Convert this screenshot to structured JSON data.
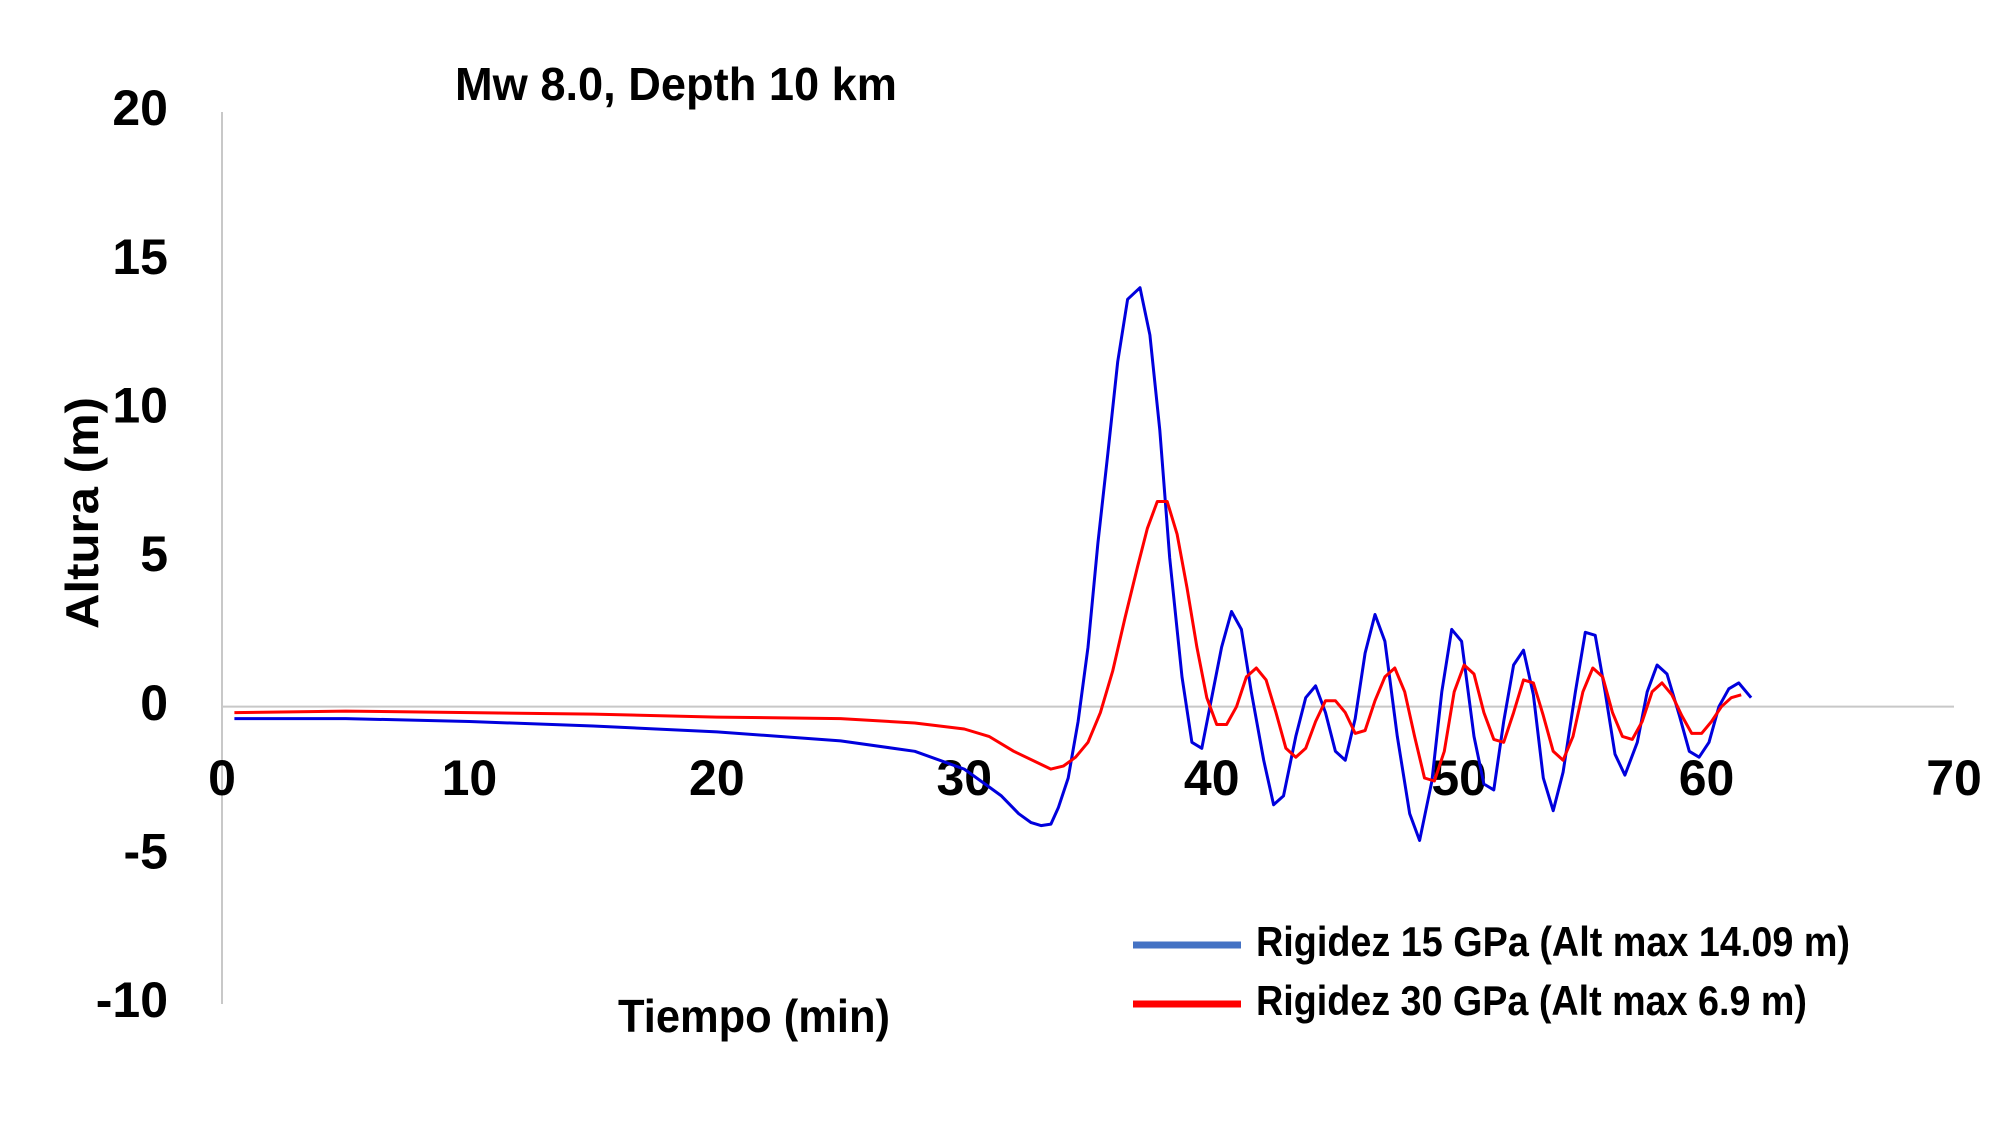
{
  "chart_data": {
    "type": "line",
    "title": "Mw 8.0, Depth 10 km",
    "x_label": "Tiempo (min)",
    "y_label": "Altura (m)",
    "xlim": [
      0,
      70
    ],
    "xticks": [
      0,
      10,
      20,
      30,
      40,
      50,
      60,
      70
    ],
    "ylim": [
      -10,
      20
    ],
    "yticks": [
      -10,
      -5,
      0,
      5,
      10,
      15,
      20
    ],
    "legend": "bottom-right",
    "series": [
      {
        "name": "Rigidez 15 GPa (Alt max 14.09 m)",
        "color": "#0000dd",
        "x": [
          0.5,
          5,
          10,
          15,
          20,
          25,
          28,
          30,
          31,
          31.5,
          32.2,
          32.7,
          33.1,
          33.5,
          33.8,
          34.2,
          34.6,
          35.0,
          35.4,
          35.8,
          36.2,
          36.6,
          37.1,
          37.5,
          37.9,
          38.3,
          38.8,
          39.2,
          39.6,
          40.0,
          40.4,
          40.8,
          41.2,
          41.6,
          42.1,
          42.5,
          42.9,
          43.4,
          43.8,
          44.2,
          44.6,
          45.0,
          45.4,
          45.8,
          46.2,
          46.6,
          47.0,
          47.5,
          48.0,
          48.4,
          48.9,
          49.3,
          49.7,
          50.1,
          50.6,
          51.0,
          51.4,
          51.8,
          52.2,
          52.6,
          53.0,
          53.4,
          53.8,
          54.2,
          54.7,
          55.1,
          55.5,
          55.9,
          56.3,
          56.7,
          57.2,
          57.6,
          58.0,
          58.4,
          58.9,
          59.3,
          59.7,
          60.1,
          60.5,
          60.9,
          61.3,
          61.8
        ],
        "values": [
          -0.4,
          -0.4,
          -0.5,
          -0.65,
          -0.85,
          -1.15,
          -1.5,
          -2.1,
          -2.7,
          -3.0,
          -3.6,
          -3.9,
          -4.0,
          -3.95,
          -3.4,
          -2.4,
          -0.5,
          2,
          5.5,
          8.5,
          11.6,
          13.7,
          14.09,
          12.5,
          9.3,
          5,
          1,
          -1.2,
          -1.4,
          0.3,
          2,
          3.2,
          2.6,
          0.5,
          -1.8,
          -3.3,
          -3.0,
          -1,
          0.3,
          0.7,
          -0.2,
          -1.5,
          -1.8,
          -0.4,
          1.8,
          3.1,
          2.2,
          -1,
          -3.6,
          -4.5,
          -2.5,
          0.5,
          2.6,
          2.2,
          -1,
          -2.6,
          -2.8,
          -0.5,
          1.4,
          1.9,
          0.4,
          -2.4,
          -3.5,
          -2.2,
          0.5,
          2.5,
          2.4,
          0.5,
          -1.6,
          -2.3,
          -1.2,
          0.5,
          1.4,
          1.1,
          -0.3,
          -1.5,
          -1.7,
          -1.2,
          0,
          0.6,
          0.8,
          0.3
        ]
      },
      {
        "name": "Rigidez 30 GPa (Alt max 6.9 m)",
        "color": "#ff0000",
        "x": [
          0.5,
          5,
          10,
          15,
          20,
          25,
          28,
          30,
          31,
          32,
          33.5,
          34,
          34.5,
          35,
          35.5,
          36,
          36.5,
          37,
          37.4,
          37.8,
          38.2,
          38.6,
          39,
          39.4,
          39.8,
          40.2,
          40.6,
          41,
          41.4,
          41.8,
          42.2,
          42.6,
          43,
          43.4,
          43.8,
          44.2,
          44.6,
          45,
          45.4,
          45.8,
          46.2,
          46.6,
          47,
          47.4,
          47.8,
          48.2,
          48.6,
          49,
          49.4,
          49.8,
          50.2,
          50.6,
          51,
          51.4,
          51.8,
          52.2,
          52.6,
          53,
          53.4,
          53.8,
          54.2,
          54.6,
          55,
          55.4,
          55.8,
          56.2,
          56.6,
          57,
          57.4,
          57.8,
          58.2,
          58.6,
          59,
          59.4,
          59.8,
          60.2,
          60.6,
          61,
          61.4
        ],
        "values": [
          -0.2,
          -0.15,
          -0.2,
          -0.25,
          -0.35,
          -0.4,
          -0.55,
          -0.75,
          -1.0,
          -1.5,
          -2.1,
          -2.0,
          -1.7,
          -1.2,
          -0.2,
          1.2,
          3,
          4.7,
          6,
          6.9,
          6.9,
          5.8,
          4,
          2,
          0.3,
          -0.6,
          -0.6,
          0,
          1,
          1.3,
          0.9,
          -0.2,
          -1.4,
          -1.7,
          -1.4,
          -0.5,
          0.2,
          0.2,
          -0.2,
          -0.9,
          -0.8,
          0.2,
          1.0,
          1.3,
          0.5,
          -1.0,
          -2.4,
          -2.5,
          -1.5,
          0.5,
          1.4,
          1.1,
          -0.2,
          -1.1,
          -1.2,
          -0.2,
          0.9,
          0.8,
          -0.3,
          -1.5,
          -1.8,
          -1,
          0.5,
          1.3,
          1.0,
          -0.2,
          -1.0,
          -1.1,
          -0.5,
          0.5,
          0.8,
          0.4,
          -0.3,
          -0.9,
          -0.9,
          -0.5,
          0,
          0.3,
          0.4
        ]
      }
    ]
  }
}
